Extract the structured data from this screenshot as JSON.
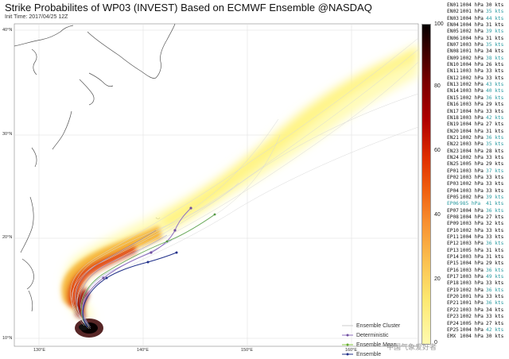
{
  "title": "Strike Probabilites of WP03 (INVEST) Based on ECMWF Ensemble @NASDAQ",
  "init_time": "Init Time: 2017/04/25 12Z",
  "map": {
    "latitudes": [
      "40°N",
      "30°N",
      "20°N",
      "10°N"
    ],
    "longitudes": [
      "130°E",
      "140°E",
      "150°E",
      "160°E"
    ]
  },
  "colorbar": {
    "ticks": [
      "100",
      "80",
      "60",
      "40",
      "20",
      "0"
    ],
    "colors": [
      "#050000",
      "#7a0000",
      "#e03000",
      "#f89030",
      "#fde870",
      "#fffab0"
    ]
  },
  "legend": {
    "cluster": "Ensemble Cluster",
    "deterministic": "Deterministic",
    "mean": "Ensemble Mean",
    "ensemble": "Ensemble"
  },
  "watermark": "中国气象爱好者",
  "members": [
    {
      "id": "EN01",
      "pressure": "1004 hPa",
      "wind": "30 kts",
      "color": "#111111"
    },
    {
      "id": "EN02",
      "pressure": "1001 hPa",
      "wind": "35 kts",
      "color": "#2a9aa0"
    },
    {
      "id": "EN03",
      "pressure": "1004 hPa",
      "wind": "44 kts",
      "color": "#2a9aa0"
    },
    {
      "id": "EN04",
      "pressure": "1004 hPa",
      "wind": "31 kts",
      "color": "#111111"
    },
    {
      "id": "EN05",
      "pressure": "1002 hPa",
      "wind": "39 kts",
      "color": "#2a9aa0"
    },
    {
      "id": "EN06",
      "pressure": "1004 hPa",
      "wind": "31 kts",
      "color": "#111111"
    },
    {
      "id": "EN07",
      "pressure": "1003 hPa",
      "wind": "35 kts",
      "color": "#2a9aa0"
    },
    {
      "id": "EN08",
      "pressure": "1001 hPa",
      "wind": "34 kts",
      "color": "#111111"
    },
    {
      "id": "EN09",
      "pressure": "1002 hPa",
      "wind": "38 kts",
      "color": "#2a9aa0"
    },
    {
      "id": "EN10",
      "pressure": "1004 hPa",
      "wind": "26 kts",
      "color": "#111111"
    },
    {
      "id": "EN11",
      "pressure": "1003 hPa",
      "wind": "33 kts",
      "color": "#111111"
    },
    {
      "id": "EN12",
      "pressure": "1002 hPa",
      "wind": "33 kts",
      "color": "#111111"
    },
    {
      "id": "EN13",
      "pressure": "1002 hPa",
      "wind": "43 kts",
      "color": "#2a9aa0"
    },
    {
      "id": "EN14",
      "pressure": "1003 hPa",
      "wind": "40 kts",
      "color": "#2a9aa0"
    },
    {
      "id": "EN15",
      "pressure": "1002 hPa",
      "wind": "36 kts",
      "color": "#2a9aa0"
    },
    {
      "id": "EN16",
      "pressure": "1003 hPa",
      "wind": "29 kts",
      "color": "#111111"
    },
    {
      "id": "EN17",
      "pressure": "1004 hPa",
      "wind": "33 kts",
      "color": "#111111"
    },
    {
      "id": "EN18",
      "pressure": "1003 hPa",
      "wind": "42 kts",
      "color": "#2a9aa0"
    },
    {
      "id": "EN19",
      "pressure": "1004 hPa",
      "wind": "27 kts",
      "color": "#111111"
    },
    {
      "id": "EN20",
      "pressure": "1004 hPa",
      "wind": "31 kts",
      "color": "#111111"
    },
    {
      "id": "EN21",
      "pressure": "1002 hPa",
      "wind": "36 kts",
      "color": "#2a9aa0"
    },
    {
      "id": "EN22",
      "pressure": "1003 hPa",
      "wind": "35 kts",
      "color": "#2a9aa0"
    },
    {
      "id": "EN23",
      "pressure": "1004 hPa",
      "wind": "28 kts",
      "color": "#111111"
    },
    {
      "id": "EN24",
      "pressure": "1002 hPa",
      "wind": "33 kts",
      "color": "#111111"
    },
    {
      "id": "EN25",
      "pressure": "1005 hPa",
      "wind": "29 kts",
      "color": "#111111"
    },
    {
      "id": "EP01",
      "pressure": "1003 hPa",
      "wind": "37 kts",
      "color": "#2a9aa0"
    },
    {
      "id": "EP02",
      "pressure": "1003 hPa",
      "wind": "33 kts",
      "color": "#111111"
    },
    {
      "id": "EP03",
      "pressure": "1002 hPa",
      "wind": "33 kts",
      "color": "#111111"
    },
    {
      "id": "EP04",
      "pressure": "1003 hPa",
      "wind": "33 kts",
      "color": "#111111"
    },
    {
      "id": "EP05",
      "pressure": "1002 hPa",
      "wind": "39 kts",
      "color": "#2a9aa0"
    },
    {
      "id": "EP06",
      "pressure": "985 hPa",
      "wind": "41 kts",
      "color": "#2a9aa0",
      "highlight": "#2a9aa0"
    },
    {
      "id": "EP07",
      "pressure": "1004 hPa",
      "wind": "36 kts",
      "color": "#2a9aa0"
    },
    {
      "id": "EP08",
      "pressure": "1004 hPa",
      "wind": "27 kts",
      "color": "#111111"
    },
    {
      "id": "EP09",
      "pressure": "1003 hPa",
      "wind": "32 kts",
      "color": "#111111"
    },
    {
      "id": "EP10",
      "pressure": "1002 hPa",
      "wind": "33 kts",
      "color": "#111111"
    },
    {
      "id": "EP11",
      "pressure": "1004 hPa",
      "wind": "33 kts",
      "color": "#111111"
    },
    {
      "id": "EP12",
      "pressure": "1003 hPa",
      "wind": "36 kts",
      "color": "#2a9aa0"
    },
    {
      "id": "EP13",
      "pressure": "1005 hPa",
      "wind": "31 kts",
      "color": "#111111"
    },
    {
      "id": "EP14",
      "pressure": "1003 hPa",
      "wind": "31 kts",
      "color": "#111111"
    },
    {
      "id": "EP15",
      "pressure": "1004 hPa",
      "wind": "29 kts",
      "color": "#111111"
    },
    {
      "id": "EP16",
      "pressure": "1003 hPa",
      "wind": "36 kts",
      "color": "#2a9aa0"
    },
    {
      "id": "EP17",
      "pressure": "1003 hPa",
      "wind": "49 kts",
      "color": "#2a9aa0"
    },
    {
      "id": "EP18",
      "pressure": "1003 hPa",
      "wind": "33 kts",
      "color": "#111111"
    },
    {
      "id": "EP19",
      "pressure": "1002 hPa",
      "wind": "36 kts",
      "color": "#2a9aa0"
    },
    {
      "id": "EP20",
      "pressure": "1001 hPa",
      "wind": "33 kts",
      "color": "#111111"
    },
    {
      "id": "EP21",
      "pressure": "1001 hPa",
      "wind": "36 kts",
      "color": "#2a9aa0"
    },
    {
      "id": "EP22",
      "pressure": "1003 hPa",
      "wind": "34 kts",
      "color": "#111111"
    },
    {
      "id": "EP23",
      "pressure": "1002 hPa",
      "wind": "33 kts",
      "color": "#111111"
    },
    {
      "id": "EP24",
      "pressure": "1005 hPa",
      "wind": "27 kts",
      "color": "#111111"
    },
    {
      "id": "EP25",
      "pressure": "1004 hPa",
      "wind": "42 kts",
      "color": "#2a9aa0"
    },
    {
      "id": "EMX",
      "pressure": "1004 hPa",
      "wind": "30 kts",
      "color": "#111111"
    }
  ]
}
